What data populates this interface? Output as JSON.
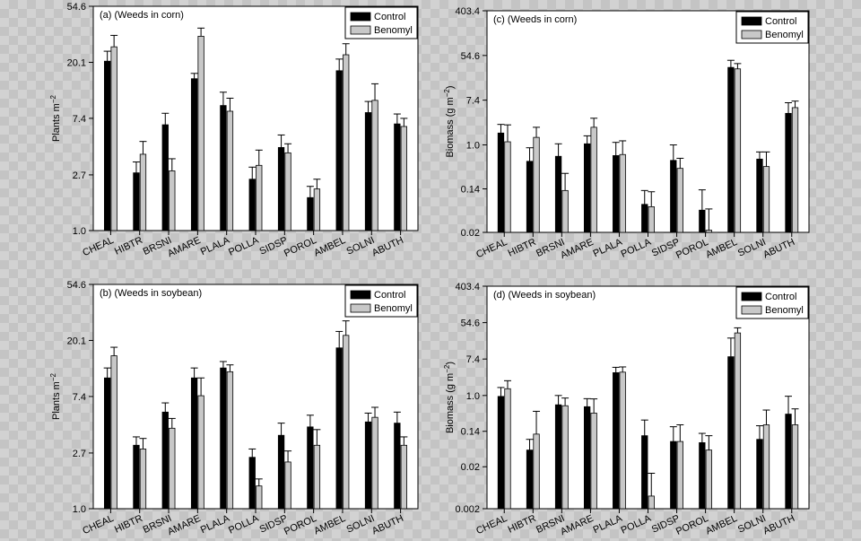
{
  "legend": {
    "control": "Control",
    "benomyl": "Benomyl"
  },
  "colors": {
    "control": "#000000",
    "benomyl": "#c8c8c8",
    "panel": "#ffffff"
  },
  "chart_data": [
    {
      "id": "a",
      "type": "bar",
      "scale": "log",
      "title": "(a) (Weeds in corn)",
      "ylabel_main": "Plants m",
      "ylabel_sup": "−2",
      "ylim": [
        1.0,
        54.6
      ],
      "yticks": [
        1.0,
        2.7,
        7.4,
        20.1,
        54.6
      ],
      "yticklabels": [
        "1.0",
        "2.7",
        "7.4",
        "20.1",
        "54.6"
      ],
      "categories": [
        "CHEAL",
        "HIBTR",
        "BRSNI",
        "AMARE",
        "PLALA",
        "POLLA",
        "SIDSP",
        "POROL",
        "AMBEL",
        "SOLNI",
        "ABUTH"
      ],
      "series": [
        {
          "name": "Control",
          "values": [
            20.5,
            2.8,
            6.6,
            15.0,
            9.3,
            2.5,
            4.4,
            1.8,
            17.3,
            8.2,
            6.7
          ],
          "errors": [
            4.0,
            0.6,
            1.5,
            1.5,
            2.5,
            0.6,
            1.1,
            0.4,
            4.0,
            1.8,
            1.3
          ]
        },
        {
          "name": "Benomyl",
          "values": [
            26.5,
            3.9,
            2.9,
            32.0,
            8.4,
            3.2,
            4.0,
            2.1,
            23.0,
            10.2,
            6.4
          ],
          "errors": [
            6.0,
            1.0,
            0.7,
            5.0,
            2.2,
            1.0,
            0.7,
            0.4,
            5.0,
            3.5,
            1.0
          ]
        }
      ]
    },
    {
      "id": "c",
      "type": "bar",
      "scale": "log",
      "title": "(c) (Weeds in corn)",
      "ylabel_main": "Biomass (g m",
      "ylabel_sup": "−2",
      "ylabel_end": ")",
      "ylim": [
        0.02,
        403.4
      ],
      "yticks": [
        0.02,
        0.14,
        1.0,
        7.4,
        54.6,
        403.4
      ],
      "yticklabels": [
        "0.02",
        "0.14",
        "1.0",
        "7.4",
        "54.6",
        "403.4"
      ],
      "categories": [
        "CHEAL",
        "HIBTR",
        "BRSNI",
        "AMARE",
        "PLALA",
        "POLLA",
        "SIDSP",
        "POROL",
        "AMBEL",
        "SOLNI",
        "ABUTH"
      ],
      "series": [
        {
          "name": "Control",
          "values": [
            1.7,
            0.48,
            0.6,
            1.05,
            0.62,
            0.07,
            0.5,
            0.054,
            32.0,
            0.53,
            4.1
          ],
          "errors": [
            0.8,
            0.4,
            0.45,
            0.45,
            0.5,
            0.06,
            0.5,
            0.08,
            12.0,
            0.2,
            2.5
          ]
        },
        {
          "name": "Benomyl",
          "values": [
            1.15,
            1.4,
            0.13,
            2.2,
            0.65,
            0.063,
            0.35,
            0.022,
            30.0,
            0.38,
            5.3
          ],
          "errors": [
            1.3,
            0.8,
            0.15,
            1.1,
            0.55,
            0.06,
            0.2,
            0.035,
            8.0,
            0.35,
            1.8
          ]
        }
      ]
    },
    {
      "id": "b",
      "type": "bar",
      "scale": "log",
      "title": "(b) (Weeds in soybean)",
      "ylabel_main": "Plants m",
      "ylabel_sup": "−2",
      "ylim": [
        1.0,
        54.6
      ],
      "yticks": [
        1.0,
        2.7,
        7.4,
        20.1,
        54.6
      ],
      "yticklabels": [
        "1.0",
        "2.7",
        "7.4",
        "20.1",
        "54.6"
      ],
      "categories": [
        "CHEAL",
        "HIBTR",
        "BRSNI",
        "AMARE",
        "PLALA",
        "POLLA",
        "SIDSP",
        "POROL",
        "AMBEL",
        "SOLNI",
        "ABUTH"
      ],
      "series": [
        {
          "name": "Control",
          "values": [
            10.3,
            3.1,
            5.6,
            10.3,
            12.3,
            2.5,
            3.7,
            4.3,
            17.6,
            4.7,
            4.6
          ],
          "errors": [
            2.0,
            0.5,
            1.0,
            2.0,
            1.5,
            0.4,
            0.9,
            1.0,
            6.0,
            0.8,
            1.0
          ]
        },
        {
          "name": "Benomyl",
          "values": [
            15.3,
            2.9,
            4.2,
            7.5,
            11.5,
            1.5,
            2.3,
            3.1,
            22.0,
            5.1,
            3.1
          ],
          "errors": [
            2.5,
            0.6,
            0.8,
            2.8,
            1.5,
            0.2,
            0.5,
            1.0,
            6.5,
            1.0,
            0.5
          ]
        }
      ]
    },
    {
      "id": "d",
      "type": "bar",
      "scale": "log",
      "title": "(d) (Weeds in soybean)",
      "ylabel_main": "Biomass (g m",
      "ylabel_sup": "−2",
      "ylabel_end": ")",
      "ylim": [
        0.002,
        403.4
      ],
      "yticks": [
        0.002,
        0.02,
        0.14,
        1.0,
        7.4,
        54.6,
        403.4
      ],
      "yticklabels": [
        "0.002",
        "0.02",
        "0.14",
        "1.0",
        "7.4",
        "54.6",
        "403.4"
      ],
      "categories": [
        "CHEAL",
        "HIBTR",
        "BRSNI",
        "AMARE",
        "PLALA",
        "POLLA",
        "SIDSP",
        "POROL",
        "AMBEL",
        "SOLNI",
        "ABUTH"
      ],
      "series": [
        {
          "name": "Control",
          "values": [
            0.95,
            0.05,
            0.6,
            0.54,
            3.5,
            0.11,
            0.08,
            0.075,
            8.4,
            0.09,
            0.36
          ],
          "errors": [
            0.6,
            0.04,
            0.4,
            0.3,
            1.2,
            0.15,
            0.1,
            0.05,
            15.0,
            0.1,
            0.6
          ]
        },
        {
          "name": "Benomyl",
          "values": [
            1.45,
            0.12,
            0.57,
            0.38,
            3.6,
            0.004,
            0.08,
            0.05,
            31.0,
            0.2,
            0.2
          ],
          "errors": [
            0.8,
            0.3,
            0.3,
            0.45,
            1.2,
            0.01,
            0.12,
            0.06,
            10.0,
            0.25,
            0.28
          ]
        }
      ]
    }
  ]
}
